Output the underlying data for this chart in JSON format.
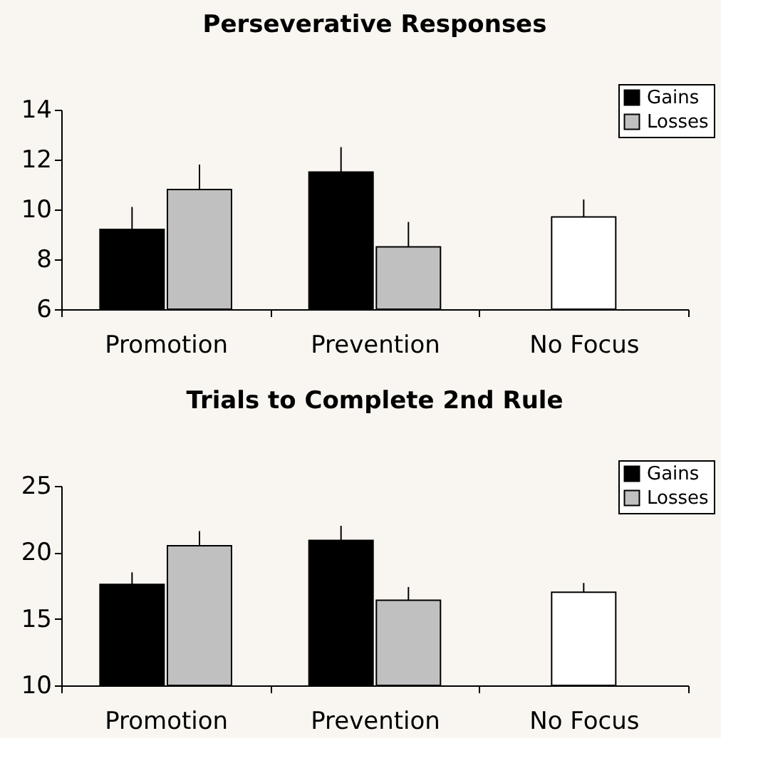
{
  "chart_data": [
    {
      "type": "bar",
      "title": "Perseverative Responses",
      "categories": [
        "Promotion",
        "Prevention",
        "No Focus"
      ],
      "series": [
        {
          "name": "Gains",
          "color": "#000000",
          "values": [
            9.2,
            11.5,
            null
          ],
          "errors": [
            [
              9.2,
              10.1
            ],
            [
              11.5,
              12.5
            ],
            null
          ]
        },
        {
          "name": "Losses",
          "color": "#c0c0c0",
          "values": [
            10.8,
            8.5,
            null
          ],
          "errors": [
            [
              10.8,
              11.8
            ],
            [
              8.5,
              9.5
            ],
            null
          ]
        },
        {
          "color": "#ffffff",
          "values": [
            null,
            null,
            9.7
          ],
          "errors": [
            null,
            null,
            [
              9.7,
              10.4
            ]
          ]
        }
      ],
      "ylim": [
        6,
        14
      ],
      "yticks": [
        6,
        8,
        10,
        12,
        14
      ],
      "grid": false,
      "legend": "top right"
    },
    {
      "type": "bar",
      "title": "Trials to Complete 2nd Rule",
      "categories": [
        "Promotion",
        "Prevention",
        "No Focus"
      ],
      "series": [
        {
          "name": "Gains",
          "color": "#000000",
          "values": [
            17.6,
            20.9,
            null
          ],
          "errors": [
            [
              17.6,
              18.5
            ],
            [
              20.9,
              22.0
            ],
            null
          ]
        },
        {
          "name": "Losses",
          "color": "#c0c0c0",
          "values": [
            20.5,
            16.4,
            null
          ],
          "errors": [
            [
              20.5,
              21.6
            ],
            [
              16.4,
              17.4
            ],
            null
          ]
        },
        {
          "color": "#ffffff",
          "values": [
            null,
            null,
            17.0
          ],
          "errors": [
            null,
            null,
            [
              17.0,
              17.7
            ]
          ]
        }
      ],
      "ylim": [
        10,
        25
      ],
      "yticks": [
        10,
        15,
        20,
        25
      ],
      "grid": false,
      "legend": "top right"
    }
  ]
}
